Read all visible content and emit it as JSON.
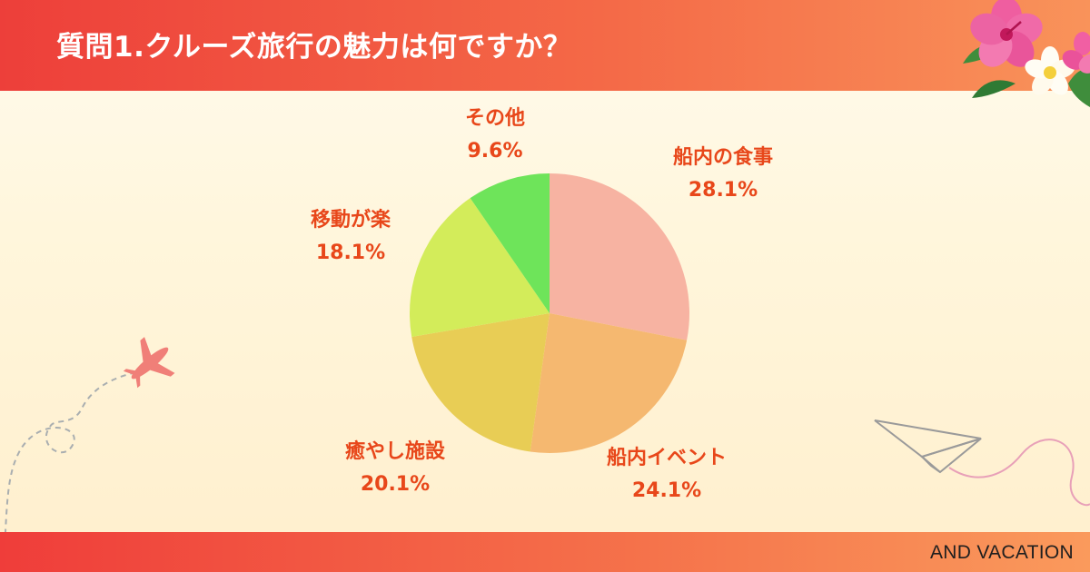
{
  "header": {
    "title": "質問1.クルーズ旅行の魅力は何ですか？"
  },
  "footer": {
    "brand": "AND VACATION"
  },
  "colors": {
    "accent_text": "#e8471a",
    "header_start": "#ed3f3a",
    "header_end": "#f9935a"
  },
  "chart_data": {
    "type": "pie",
    "title": "質問1.クルーズ旅行の魅力は何ですか？",
    "categories": [
      "船内の食事",
      "船内イベント",
      "癒やし施設",
      "移動が楽",
      "その他"
    ],
    "values": [
      28.1,
      24.1,
      20.1,
      18.1,
      9.6
    ],
    "value_labels": [
      "28.1%",
      "24.1%",
      "20.1%",
      "18.1%",
      "9.6%"
    ],
    "colors": [
      "#f7b3a2",
      "#f5b870",
      "#e8cd55",
      "#d3ec5a",
      "#6ee45a"
    ],
    "start_angle_deg": 0,
    "direction": "clockwise",
    "legend": "none (labels outside slices)"
  }
}
